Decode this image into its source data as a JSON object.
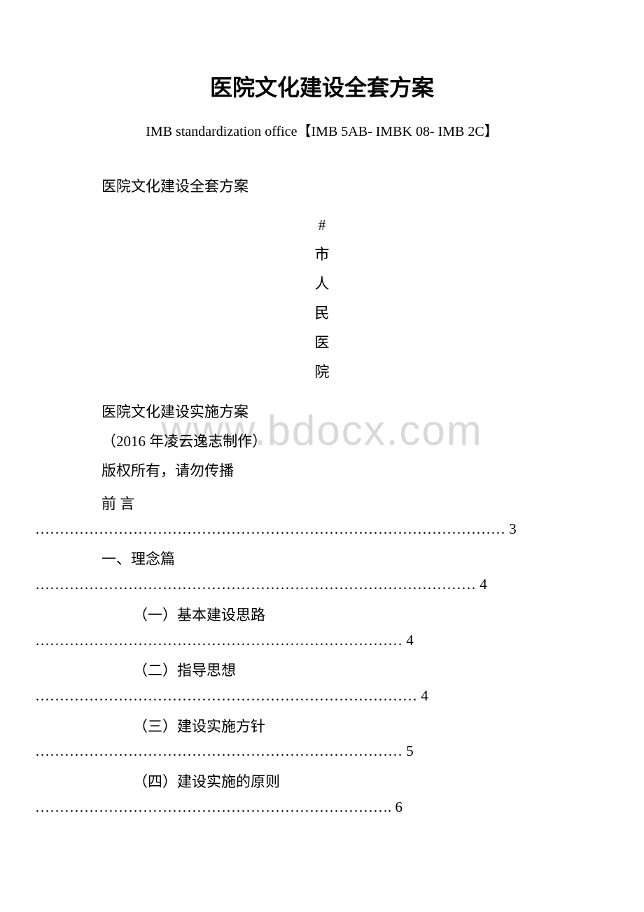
{
  "document": {
    "main_title": "医院文化建设全套方案",
    "standardization_line": "IMB standardization office【IMB 5AB- IMBK 08- IMB 2C】",
    "section_title": "医院文化建设全套方案",
    "vertical_text": {
      "c1": "#",
      "c2": "市",
      "c3": "人",
      "c4": "民",
      "c5": "医",
      "c6": "院"
    },
    "plan_title": "医院文化建设实施方案",
    "author_line": "（2016 年凌云逸志制作）",
    "copyright_line": "版权所有，请勿传播",
    "watermark": "www.bdocx.com",
    "toc": {
      "preface": "前 言",
      "preface_dots": "…………………………………………………………………………………… 3",
      "s1": "一、理念篇",
      "s1_dots": "……………………………………………………………………………… 4",
      "s1_1": "（一）基本建设思路",
      "s1_1_dots": "………………………………………………………………… 4",
      "s1_2": "（二）指导思想",
      "s1_2_dots": "…………………………………………………………………… 4",
      "s1_3": "（三）建设实施方针",
      "s1_3_dots": "………………………………………………………………… 5",
      "s1_4": "（四）建设实施的原则",
      "s1_4_dots": "………………………………………………………………. 6"
    }
  },
  "style": {
    "background_color": "#ffffff",
    "text_color": "#000000",
    "watermark_color": "#d9d9d9",
    "title_fontsize": 32,
    "body_fontsize": 21,
    "subtitle_fontsize": 20
  }
}
